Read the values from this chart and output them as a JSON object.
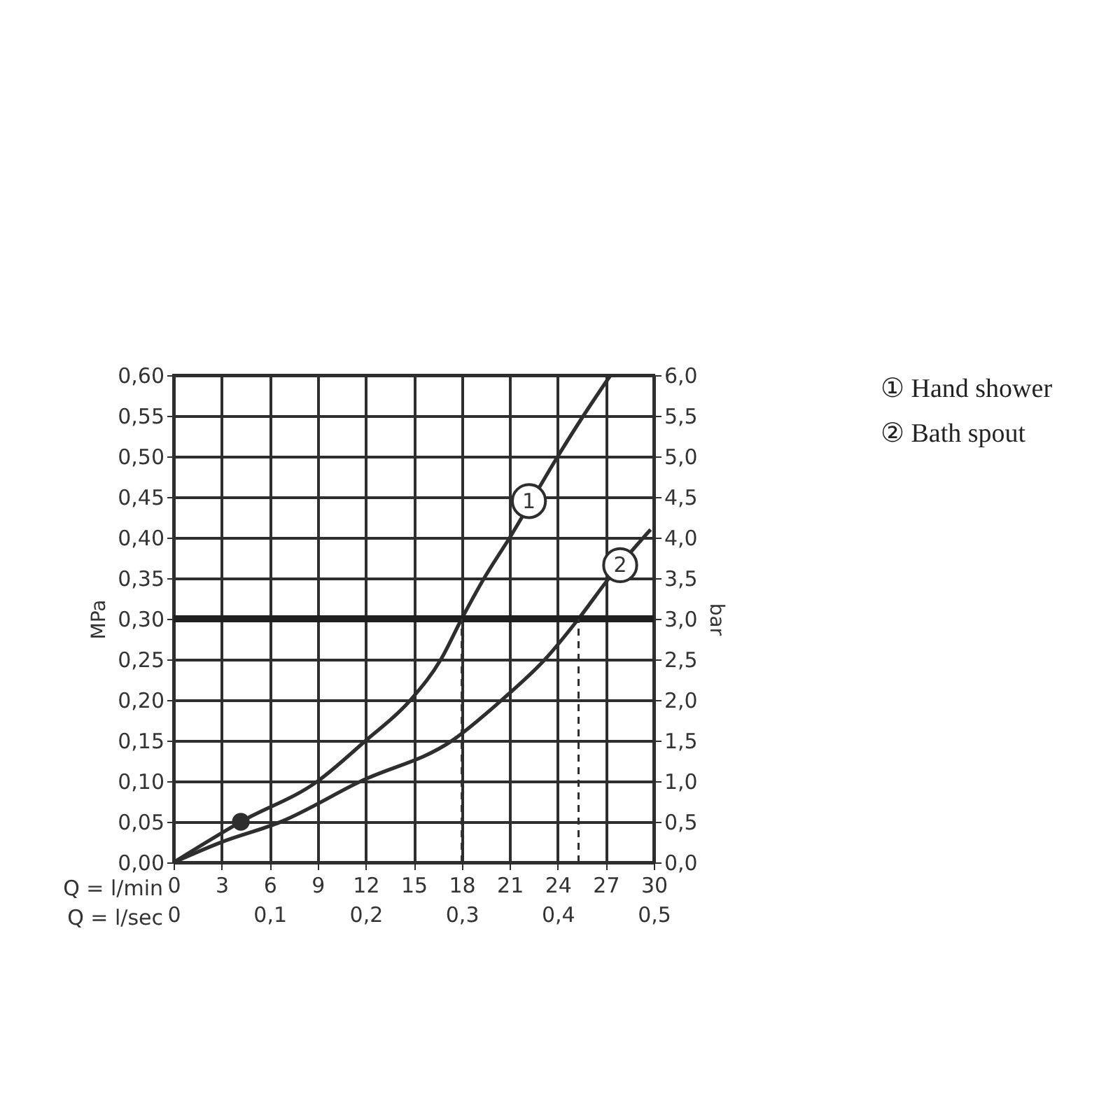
{
  "chart_data": {
    "type": "line",
    "xlabel": "Q = l/min",
    "x2label": "Q = l/sec",
    "ylabel": "MPa",
    "y2label": "bar",
    "xlim": [
      0,
      30
    ],
    "xticks": [
      0,
      3,
      6,
      9,
      12,
      15,
      18,
      21,
      24,
      27,
      30
    ],
    "x2lim": [
      0,
      0.5
    ],
    "x2ticks": [
      {
        "value": 0,
        "label": "0"
      },
      {
        "value": 0.1,
        "label": "0,1"
      },
      {
        "value": 0.2,
        "label": "0,2"
      },
      {
        "value": 0.3,
        "label": "0,3"
      },
      {
        "value": 0.4,
        "label": "0,4"
      },
      {
        "value": 0.5,
        "label": "0,5"
      }
    ],
    "ylim": [
      0,
      0.6
    ],
    "yticks": [
      {
        "value": 0,
        "label": "0,00"
      },
      {
        "value": 0.05,
        "label": "0,05"
      },
      {
        "value": 0.1,
        "label": "0,10"
      },
      {
        "value": 0.15,
        "label": "0,15"
      },
      {
        "value": 0.2,
        "label": "0,20"
      },
      {
        "value": 0.25,
        "label": "0,25"
      },
      {
        "value": 0.3,
        "label": "0,30"
      },
      {
        "value": 0.35,
        "label": "0,35"
      },
      {
        "value": 0.4,
        "label": "0,40"
      },
      {
        "value": 0.45,
        "label": "0,45"
      },
      {
        "value": 0.5,
        "label": "0,50"
      },
      {
        "value": 0.55,
        "label": "0,55"
      },
      {
        "value": 0.6,
        "label": "0,60"
      }
    ],
    "y2lim": [
      0,
      6
    ],
    "y2ticks": [
      {
        "value": 0,
        "label": "0,0"
      },
      {
        "value": 0.5,
        "label": "0,5"
      },
      {
        "value": 1,
        "label": "1,0"
      },
      {
        "value": 1.5,
        "label": "1,5"
      },
      {
        "value": 2,
        "label": "2,0"
      },
      {
        "value": 2.5,
        "label": "2,5"
      },
      {
        "value": 3,
        "label": "3,0"
      },
      {
        "value": 3.5,
        "label": "3,5"
      },
      {
        "value": 4,
        "label": "4,0"
      },
      {
        "value": 4.5,
        "label": "4,5"
      },
      {
        "value": 5,
        "label": "5,0"
      },
      {
        "value": 5.5,
        "label": "5,5"
      },
      {
        "value": 6,
        "label": "6,0"
      }
    ],
    "grid": true,
    "legend": "top right",
    "series": [
      {
        "name": "① Hand shower",
        "color": "#2e2e2e",
        "x": [
          0,
          4.2,
          9,
          12,
          14.8,
          16.7,
          18,
          19.4,
          21,
          24,
          25.6,
          27.3
        ],
        "values": [
          0,
          0.05,
          0.1,
          0.15,
          0.2,
          0.25,
          0.3,
          0.35,
          0.4,
          0.5,
          0.55,
          0.6
        ]
      },
      {
        "name": "② Bath spout",
        "color": "#2e2e2e",
        "x": [
          0,
          3,
          6.7,
          11.7,
          17.4,
          20.5,
          23.2,
          25.3,
          27.2,
          29.8
        ],
        "values": [
          0,
          0.025,
          0.05,
          0.1,
          0.15,
          0.2,
          0.25,
          0.3,
          0.35,
          0.41
        ]
      },
      {
        "type": "scatter",
        "marker": "circle",
        "color": "#2e2e2e",
        "x": [
          4.2
        ],
        "values": [
          0.05
        ]
      }
    ],
    "ref_lines": [
      {
        "axis": "y",
        "value": 0.3,
        "color": "#1e1e1e"
      },
      {
        "axis": "x",
        "value": 18,
        "color": "#2e2e2e",
        "line_style": "dashed"
      },
      {
        "axis": "x",
        "value": 25.3,
        "color": "#2e2e2e",
        "line_style": "dashed"
      }
    ],
    "annotations": [
      {
        "text": "1",
        "x": 22.2,
        "y": 0.445
      },
      {
        "text": "2",
        "x": 27.9,
        "y": 0.366
      }
    ]
  }
}
